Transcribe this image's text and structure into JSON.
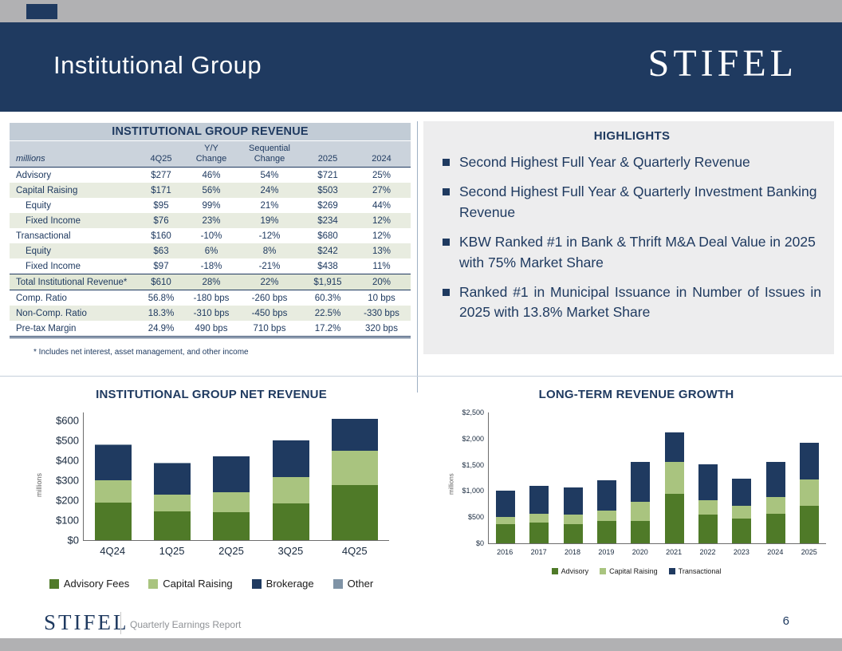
{
  "slide": {
    "title": "Institutional Group",
    "brand": "STIFEL",
    "footer_text": "Quarterly Earnings Report",
    "page_number": "6"
  },
  "colors": {
    "navy": "#1f3a60",
    "dark_green": "#4f7a28",
    "light_green": "#a9c47f",
    "gray_blue": "#7f93a6",
    "table_header_bg": "#c2ccd6",
    "row_shade_bg": "#e8ece0",
    "highlights_bg": "#ededee"
  },
  "revenue_table": {
    "title": "INSTITUTIONAL GROUP REVENUE",
    "columns": [
      "millions",
      "4Q25",
      "Y/Y Change",
      "Sequential Change",
      "2025",
      "2024"
    ],
    "rows": [
      {
        "label": "Advisory",
        "indent": false,
        "shaded": false,
        "total": false,
        "values": [
          "$277",
          "46%",
          "54%",
          "$721",
          "25%"
        ]
      },
      {
        "label": "Capital Raising",
        "indent": false,
        "shaded": true,
        "total": false,
        "values": [
          "$171",
          "56%",
          "24%",
          "$503",
          "27%"
        ]
      },
      {
        "label": "Equity",
        "indent": true,
        "shaded": false,
        "total": false,
        "values": [
          "$95",
          "99%",
          "21%",
          "$269",
          "44%"
        ]
      },
      {
        "label": "Fixed Income",
        "indent": true,
        "shaded": true,
        "total": false,
        "values": [
          "$76",
          "23%",
          "19%",
          "$234",
          "12%"
        ]
      },
      {
        "label": "Transactional",
        "indent": false,
        "shaded": false,
        "total": false,
        "values": [
          "$160",
          "-10%",
          "-12%",
          "$680",
          "12%"
        ]
      },
      {
        "label": "Equity",
        "indent": true,
        "shaded": true,
        "total": false,
        "values": [
          "$63",
          "6%",
          "8%",
          "$242",
          "13%"
        ]
      },
      {
        "label": "Fixed Income",
        "indent": true,
        "shaded": false,
        "total": false,
        "values": [
          "$97",
          "-18%",
          "-21%",
          "$438",
          "11%"
        ]
      },
      {
        "label": "Total Institutional Revenue*",
        "indent": false,
        "shaded": true,
        "total": true,
        "values": [
          "$610",
          "28%",
          "22%",
          "$1,915",
          "20%"
        ]
      },
      {
        "label": "Comp. Ratio",
        "indent": false,
        "shaded": false,
        "total": false,
        "values": [
          "56.8%",
          "-180 bps",
          "-260 bps",
          "60.3%",
          "10 bps"
        ]
      },
      {
        "label": "Non-Comp. Ratio",
        "indent": false,
        "shaded": true,
        "total": false,
        "values": [
          "18.3%",
          "-310 bps",
          "-450 bps",
          "22.5%",
          "-330 bps"
        ]
      },
      {
        "label": "Pre-tax Margin",
        "indent": false,
        "shaded": false,
        "total": false,
        "values": [
          "24.9%",
          "490 bps",
          "710 bps",
          "17.2%",
          "320 bps"
        ]
      }
    ],
    "footnote": "* Includes net interest, asset management, and other income"
  },
  "highlights": {
    "title": "HIGHLIGHTS",
    "items": [
      "Second Highest Full Year & Quarterly Revenue",
      "Second Highest Full Year & Quarterly Investment Banking Revenue",
      "KBW Ranked #1 in Bank & Thrift M&A Deal Value in 2025 with 75% Market Share",
      "Ranked #1 in Municipal Issuance in Number of Issues in 2025 with 13.8% Market Share"
    ]
  },
  "chart_data": [
    {
      "type": "bar",
      "stacked": true,
      "title": "INSTITUTIONAL GROUP NET REVENUE",
      "xlabel": "",
      "ylabel": "millions",
      "categories": [
        "4Q24",
        "1Q25",
        "2Q25",
        "3Q25",
        "4Q25"
      ],
      "series": [
        {
          "name": "Advisory Fees",
          "color": "#4f7a28",
          "values": [
            190,
            145,
            140,
            185,
            277
          ]
        },
        {
          "name": "Capital Raising",
          "color": "#a9c47f",
          "values": [
            110,
            85,
            100,
            130,
            171
          ]
        },
        {
          "name": "Brokerage",
          "color": "#1f3a60",
          "values": [
            175,
            155,
            180,
            185,
            160
          ]
        },
        {
          "name": "Other",
          "color": "#7f93a6",
          "values": [
            5,
            5,
            2,
            2,
            2
          ]
        }
      ],
      "ylim": [
        0,
        640
      ],
      "yticks": [
        {
          "value": 0,
          "label": "$0"
        },
        {
          "value": 100,
          "label": "$100"
        },
        {
          "value": 200,
          "label": "$200"
        },
        {
          "value": 300,
          "label": "$300"
        },
        {
          "value": 400,
          "label": "$400"
        },
        {
          "value": 500,
          "label": "$500"
        },
        {
          "value": 600,
          "label": "$600"
        }
      ],
      "grid": false,
      "legend_position": "bottom"
    },
    {
      "type": "bar",
      "stacked": true,
      "title": "LONG-TERM REVENUE GROWTH",
      "xlabel": "",
      "ylabel": "millions",
      "categories": [
        "2016",
        "2017",
        "2018",
        "2019",
        "2020",
        "2021",
        "2022",
        "2023",
        "2024",
        "2025"
      ],
      "series": [
        {
          "name": "Advisory",
          "color": "#4f7a28",
          "values": [
            360,
            390,
            370,
            430,
            430,
            950,
            550,
            480,
            560,
            721
          ]
        },
        {
          "name": "Capital Raising",
          "color": "#a9c47f",
          "values": [
            150,
            180,
            180,
            190,
            370,
            600,
            280,
            230,
            330,
            503
          ]
        },
        {
          "name": "Transactional",
          "color": "#1f3a60",
          "values": [
            500,
            530,
            510,
            580,
            760,
            570,
            680,
            520,
            670,
            691
          ]
        }
      ],
      "ylim": [
        0,
        2500
      ],
      "yticks": [
        {
          "value": 0,
          "label": "$0"
        },
        {
          "value": 500,
          "label": "$500"
        },
        {
          "value": 1000,
          "label": "$1,000"
        },
        {
          "value": 1500,
          "label": "$1,500"
        },
        {
          "value": 2000,
          "label": "$2,000"
        },
        {
          "value": 2500,
          "label": "$2,500"
        }
      ],
      "grid": false,
      "legend_position": "bottom"
    }
  ]
}
